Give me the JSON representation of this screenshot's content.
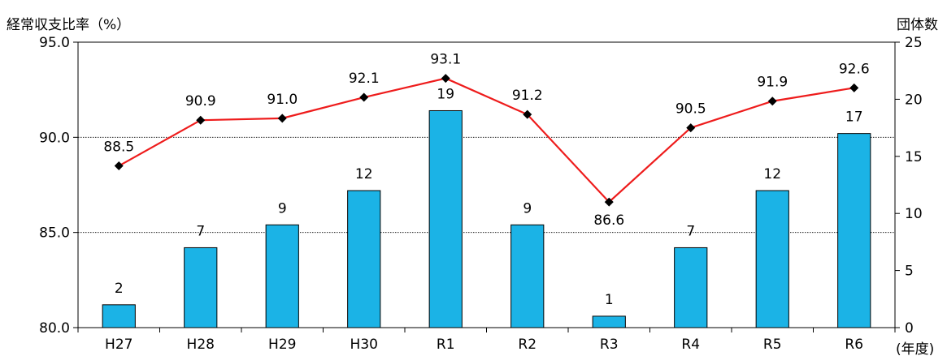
{
  "chart_data": {
    "type": "bar+line",
    "categories": [
      "H27",
      "H28",
      "H29",
      "H30",
      "R1",
      "R2",
      "R3",
      "R4",
      "R5",
      "R6"
    ],
    "series": [
      {
        "type": "bar",
        "axis": "right",
        "values": [
          2,
          7,
          9,
          12,
          19,
          9,
          1,
          7,
          12,
          17
        ],
        "labels": [
          "2",
          "7",
          "9",
          "12",
          "19",
          "9",
          "1",
          "7",
          "12",
          "17"
        ],
        "color": "#1bb3e6"
      },
      {
        "type": "line",
        "axis": "left",
        "values": [
          88.5,
          90.9,
          91.0,
          92.1,
          93.1,
          91.2,
          86.6,
          90.5,
          91.9,
          92.6
        ],
        "labels": [
          "88.5",
          "90.9",
          "91.0",
          "92.1",
          "93.1",
          "91.2",
          "86.6",
          "90.5",
          "91.9",
          "92.6"
        ],
        "color": "#ee1c1c",
        "marker": "diamond"
      }
    ],
    "y_left": {
      "label": "経常収支比率（%）",
      "ylim": [
        80.0,
        95.0
      ],
      "ticks": [
        "80.0",
        "85.0",
        "90.0",
        "95.0"
      ]
    },
    "y_right": {
      "label": "団体数",
      "ylim": [
        0,
        25
      ],
      "ticks": [
        "0",
        "5",
        "10",
        "15",
        "20",
        "25"
      ]
    },
    "xlabel": "(年度)",
    "grid": "horizontal dotted"
  }
}
